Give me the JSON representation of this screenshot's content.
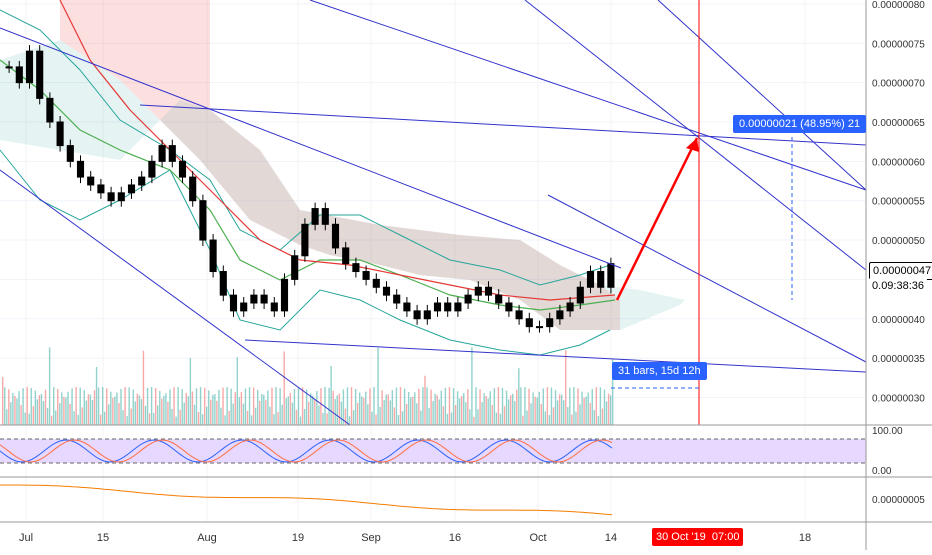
{
  "chart_data": {
    "type": "candlestick",
    "x_ticks": [
      "Jul",
      "15",
      "Aug",
      "19",
      "Sep",
      "16",
      "Oct",
      "14",
      "18"
    ],
    "price_axis": {
      "ticks": [
        "0.00000080",
        "0.00000075",
        "0.00000070",
        "0.00000065",
        "0.00000060",
        "0.00000055",
        "0.00000050",
        "0.00000045",
        "0.00000040",
        "0.00000035",
        "0.00000030"
      ],
      "ylim": [
        2.65e-07,
        8.05e-07
      ]
    },
    "current_price_label": "0.00000047",
    "countdown_label": "09:38:36",
    "countdown_prefix": "0.",
    "rsi_axis": {
      "ticks": [
        "100.00",
        "0.00"
      ]
    },
    "osc_axis": {
      "ticks": [
        "0.00000005"
      ]
    },
    "annotations": {
      "target_label": "0.00000021 (48.95%) 21",
      "range_label": "31 bars, 15d 12h",
      "crosshair_date": "30 Oct '19",
      "crosshair_time": "07:00"
    },
    "candles_close": [
      7.2e-07,
      7e-07,
      7.4e-07,
      6.8e-07,
      6.5e-07,
      6.2e-07,
      6e-07,
      5.8e-07,
      5.7e-07,
      5.6e-07,
      5.5e-07,
      5.6e-07,
      5.7e-07,
      5.8e-07,
      6e-07,
      6.2e-07,
      6e-07,
      5.8e-07,
      5.5e-07,
      5e-07,
      4.6e-07,
      4.3e-07,
      4.1e-07,
      4.2e-07,
      4.3e-07,
      4.2e-07,
      4.1e-07,
      4.5e-07,
      4.8e-07,
      5.2e-07,
      5.4e-07,
      5.2e-07,
      4.9e-07,
      4.7e-07,
      4.6e-07,
      4.5e-07,
      4.4e-07,
      4.3e-07,
      4.2e-07,
      4.1e-07,
      4e-07,
      4.1e-07,
      4.2e-07,
      4.1e-07,
      4.2e-07,
      4.3e-07,
      4.4e-07,
      4.3e-07,
      4.2e-07,
      4.1e-07,
      4e-07,
      3.9e-07,
      3.9e-07,
      4e-07,
      4.1e-07,
      4.2e-07,
      4.4e-07,
      4.6e-07,
      4.4e-07,
      4.7e-07
    ]
  },
  "colors": {
    "up": "#26a69a",
    "down": "#ef5350",
    "channel": "#3333cc",
    "arrow": "#ff0000",
    "crosshair": "#ff0000",
    "rsi_fill": "#e6d8ff",
    "osc": "#f57c00",
    "price_tag": "#2962ff"
  },
  "crosshair_dash": "--"
}
